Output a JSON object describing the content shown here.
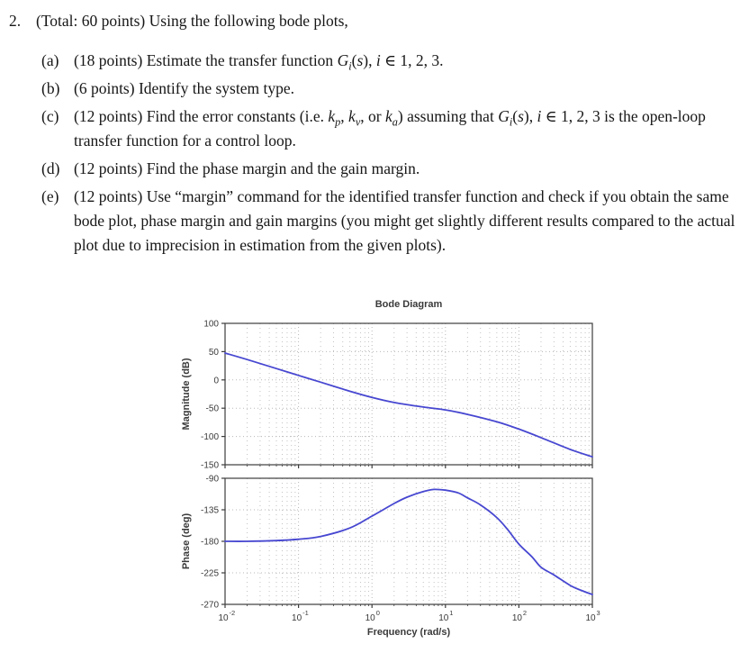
{
  "problem": {
    "number": "2.",
    "header_html": "(Total: 60 points) Using the following bode plots,",
    "items": [
      {
        "label": "(a)",
        "html": "(18 points) Estimate the transfer function <i>G<sub>i</sub></i>(<i>s</i>), <i>i</i> ∈ 1, 2, 3."
      },
      {
        "label": "(b)",
        "html": "(6 points) Identify the system type."
      },
      {
        "label": "(c)",
        "html": "(12 points) Find the error constants (i.e. <i>k<sub>p</sub></i>, <i>k<sub>v</sub></i>, or <i>k<sub>a</sub></i>) assuming that <i>G<sub>i</sub></i>(<i>s</i>), <i>i</i> ∈ 1, 2, 3 is the open-loop transfer function for a control loop."
      },
      {
        "label": "(d)",
        "html": "(12 points) Find the phase margin and the gain margin."
      },
      {
        "label": "(e)",
        "html": "(12 points) Use “margin” command for the identified transfer function and check if you obtain the same bode plot, phase margin and gain margins (you might get slightly different results compared to the actual plot due to imprecision in estimation from the given plots)."
      }
    ]
  },
  "chart_data": {
    "type": "line",
    "title": "Bode Diagram",
    "xlabel": "Frequency  (rad/s)",
    "x_scale": "log",
    "xlim": [
      0.01,
      1000
    ],
    "x_tick_exponents": [
      -2,
      -1,
      0,
      1,
      2,
      3
    ],
    "x_minor_multiples": [
      2,
      3,
      4,
      5,
      6,
      7,
      8,
      9
    ],
    "grid": true,
    "legend": "none",
    "colors": {
      "curve": "#4747d1",
      "grid": "#b8b8b8",
      "axis_box": "#3d3d3d",
      "label_text": "#3a3a3a"
    },
    "subplots": [
      {
        "name": "magnitude",
        "ylabel": "Magnitude (dB)",
        "ylim": [
          -150,
          100
        ],
        "yticks": [
          100,
          50,
          0,
          -50,
          -100,
          -150
        ],
        "series": [
          {
            "name": "magnitude-curve",
            "points": [
              [
                0.01,
                47.5
              ],
              [
                0.02,
                36
              ],
              [
                0.05,
                20
              ],
              [
                0.1,
                8
              ],
              [
                0.2,
                -4
              ],
              [
                0.5,
                -20
              ],
              [
                1,
                -31
              ],
              [
                2,
                -40
              ],
              [
                5,
                -48
              ],
              [
                10,
                -53
              ],
              [
                20,
                -61
              ],
              [
                50,
                -74
              ],
              [
                100,
                -87
              ],
              [
                200,
                -102
              ],
              [
                500,
                -123
              ],
              [
                1000,
                -136
              ]
            ]
          }
        ]
      },
      {
        "name": "phase",
        "ylabel": "Phase (deg)",
        "ylim": [
          -270,
          -90
        ],
        "yticks": [
          -90,
          -135,
          -180,
          -225,
          -270
        ],
        "series": [
          {
            "name": "phase-curve",
            "points": [
              [
                0.01,
                -180
              ],
              [
                0.02,
                -180
              ],
              [
                0.05,
                -179
              ],
              [
                0.1,
                -177
              ],
              [
                0.2,
                -173
              ],
              [
                0.5,
                -161
              ],
              [
                1,
                -144
              ],
              [
                2,
                -126
              ],
              [
                3,
                -117
              ],
              [
                5,
                -109
              ],
              [
                7,
                -106
              ],
              [
                10,
                -107
              ],
              [
                15,
                -111
              ],
              [
                20,
                -118
              ],
              [
                30,
                -128
              ],
              [
                50,
                -146
              ],
              [
                70,
                -163
              ],
              [
                100,
                -184
              ],
              [
                150,
                -202
              ],
              [
                200,
                -217
              ],
              [
                300,
                -228
              ],
              [
                500,
                -243
              ],
              [
                700,
                -250
              ],
              [
                1000,
                -256
              ]
            ]
          }
        ]
      }
    ]
  }
}
